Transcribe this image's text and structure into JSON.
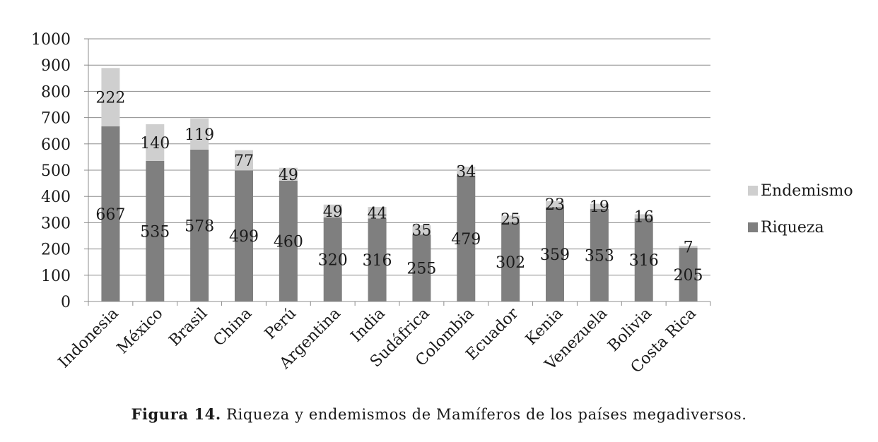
{
  "chart_data": {
    "type": "bar",
    "stacked": true,
    "categories": [
      "Indonesia",
      "México",
      "Brasil",
      "China",
      "Perú",
      "Argentina",
      "India",
      "Sudáfrica",
      "Colombia",
      "Ecuador",
      "Kenia",
      "Venezuela",
      "Bolivia",
      "Costa Rica"
    ],
    "series": [
      {
        "name": "Riqueza",
        "color": "#7f7f7f",
        "values": [
          667,
          535,
          578,
          499,
          460,
          320,
          316,
          255,
          479,
          302,
          359,
          353,
          316,
          205
        ]
      },
      {
        "name": "Endemismo",
        "color": "#cfcfcf",
        "values": [
          222,
          140,
          119,
          77,
          49,
          49,
          44,
          35,
          34,
          25,
          23,
          19,
          16,
          7
        ]
      }
    ],
    "ylim": [
      0,
      1000
    ],
    "yticks": [
      "0",
      "100",
      "200",
      "300",
      "400",
      "500",
      "600",
      "700",
      "800",
      "900",
      "1000"
    ],
    "grid": true,
    "legend_position": "right",
    "xlabel": "",
    "ylabel": ""
  },
  "caption": {
    "label": "Figura 14.",
    "text": "Riqueza y endemismos de Mamíferos de los países megadiversos."
  }
}
